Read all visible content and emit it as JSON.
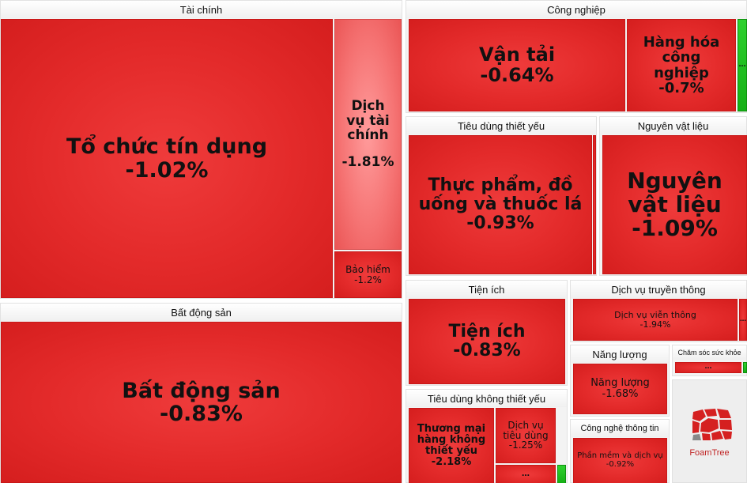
{
  "groups": {
    "tai_chinh": "Tài chính",
    "bat_dong_san": "Bất động sản",
    "cong_nghiep": "Công nghiệp",
    "tieu_dung_thiet_yeu": "Tiêu dùng thiết yếu",
    "nguyen_vat_lieu": "Nguyên vật liệu",
    "tien_ich": "Tiện ích",
    "dich_vu_truyen_thong": "Dịch vụ truyền thông",
    "tieu_dung_khong_thiet_yeu": "Tiêu dùng không thiết yếu",
    "nang_luong": "Năng lượng",
    "cham_soc_suc_khoe": "Chăm sóc sức khỏe",
    "cong_nghe_thong_tin": "Công nghệ thông tin"
  },
  "tiles": {
    "to_chuc_tin_dung": {
      "label": "Tổ chức tín dụng",
      "value": "-1.02%"
    },
    "dich_vu_tai_chinh": {
      "label": "Dịch vụ tài chính",
      "value": "-1.81%"
    },
    "bao_hiem": {
      "label": "Bảo hiểm",
      "value": "-1.2%"
    },
    "bat_dong_san": {
      "label": "Bất động sản",
      "value": "-0.83%"
    },
    "van_tai": {
      "label": "Vận tải",
      "value": "-0.64%"
    },
    "hang_hoa_cong_nghiep": {
      "label": "Hàng hóa công nghiệp",
      "value": "-0.7%"
    },
    "thuc_pham": {
      "label": "Thực phẩm, đồ uống và thuốc lá",
      "value": "-0.93%"
    },
    "nguyen_vat_lieu": {
      "label": "Nguyên vật liệu",
      "value": "-1.09%"
    },
    "tien_ich": {
      "label": "Tiện ích",
      "value": "-0.83%"
    },
    "dich_vu_vien_thong": {
      "label": "Dịch vụ viễn thông",
      "value": "-1.94%"
    },
    "nang_luong": {
      "label": "Năng lượng",
      "value": "-1.68%"
    },
    "thuong_mai": {
      "label": "Thương mại hàng không thiết yếu",
      "value": "-2.18%"
    },
    "dich_vu_tieu_dung": {
      "label": "Dịch vụ tiêu dùng",
      "value": "-1.25%"
    },
    "phan_mem": {
      "label": "Phần mềm và dịch vụ",
      "value": "-0.92%"
    }
  },
  "ellipsis": "…",
  "branding": {
    "text": "FoamTree"
  },
  "colors": {
    "negative": "#e32a2a",
    "negative_light": "#f57272",
    "positive": "#16b016",
    "header_bg": "#f3f3f3"
  }
}
